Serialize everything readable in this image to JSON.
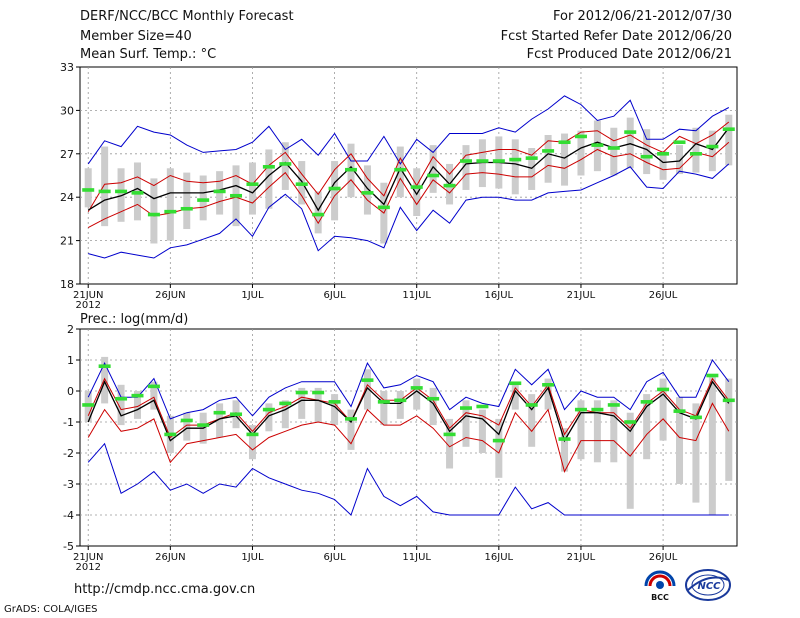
{
  "header": {
    "title": "DERF/NCC/BCC Monthly Forecast",
    "member_size": "Member Size=40",
    "variable": "Mean Surf. Temp.: °C",
    "period": "For 2012/06/21-2012/07/30",
    "fcst_started": "Fcst Started Refer Date 2012/06/20",
    "fcst_produced": "Fcst Produced Date 2012/06/21"
  },
  "footer": {
    "url": "http://cmdp.ncc.cma.gov.cn",
    "credit": "GrADS: COLA/IGES",
    "logo_bcc": "BCC",
    "logo_ncc": "NCC"
  },
  "colors": {
    "envelope": "#0000cc",
    "spread": "#cc0000",
    "mean": "#000000",
    "box": "#cccccc",
    "observed": "#33dd33",
    "grid": "#999999"
  },
  "chart_data": [
    {
      "type": "line",
      "title": "Mean Surf. Temp.: °C",
      "year_label": "2012",
      "ylim": [
        18,
        33
      ],
      "yticks": [
        18,
        21,
        24,
        27,
        30,
        33
      ],
      "xtick_labels": [
        "21JUN",
        "26JUN",
        "1JUL",
        "6JUL",
        "11JUL",
        "16JUL",
        "21JUL",
        "26JUL"
      ],
      "xtick_days": [
        1,
        6,
        11,
        16,
        21,
        26,
        31,
        36
      ],
      "grid": true,
      "series": [
        {
          "name": "ensemble max",
          "values": [
            26.3,
            27.9,
            27.5,
            28.9,
            28.5,
            28.3,
            27.6,
            27.1,
            27.2,
            27.3,
            27.8,
            28.9,
            27.3,
            28.0,
            26.9,
            28.4,
            26.5,
            26.5,
            28.2,
            26.3,
            28.0,
            27.1,
            28.4,
            28.4,
            28.4,
            28.8,
            28.5,
            29.4,
            30.1,
            31.0,
            30.4,
            29.3,
            29.6,
            30.7,
            28.0,
            28.0,
            28.7,
            28.6,
            29.6,
            30.2
          ]
        },
        {
          "name": "spread upper",
          "values": [
            23.0,
            24.9,
            25.0,
            25.4,
            24.8,
            25.5,
            25.1,
            25.0,
            25.1,
            25.5,
            24.9,
            26.2,
            27.1,
            25.6,
            24.2,
            25.9,
            27.0,
            25.3,
            24.1,
            26.7,
            24.8,
            26.8,
            25.6,
            26.9,
            27.1,
            27.3,
            27.3,
            26.9,
            27.9,
            27.8,
            28.5,
            28.6,
            27.9,
            28.3,
            27.6,
            27.1,
            28.2,
            27.7,
            28.3,
            29.2
          ]
        },
        {
          "name": "ensemble mean",
          "values": [
            23.1,
            23.8,
            24.1,
            24.6,
            23.9,
            24.3,
            24.3,
            24.3,
            24.5,
            24.8,
            24.3,
            25.5,
            26.4,
            25.1,
            23.1,
            25.0,
            26.1,
            24.6,
            23.5,
            26.0,
            24.2,
            26.1,
            24.9,
            26.3,
            26.4,
            26.4,
            26.3,
            26.0,
            27.0,
            26.7,
            27.4,
            27.8,
            27.4,
            27.7,
            27.3,
            26.4,
            26.5,
            27.7,
            27.3,
            28.8
          ]
        },
        {
          "name": "spread lower",
          "values": [
            21.9,
            22.5,
            23.0,
            23.5,
            22.7,
            22.9,
            23.2,
            23.3,
            23.7,
            24.0,
            23.6,
            24.7,
            25.7,
            24.1,
            22.2,
            24.1,
            25.2,
            23.8,
            22.9,
            25.3,
            23.5,
            25.2,
            24.3,
            25.6,
            25.7,
            25.6,
            25.4,
            25.4,
            26.2,
            26.0,
            26.6,
            27.3,
            26.8,
            27.0,
            26.4,
            25.9,
            26.0,
            27.1,
            26.8,
            27.8
          ]
        },
        {
          "name": "ensemble min",
          "values": [
            20.1,
            19.8,
            20.2,
            20.0,
            19.8,
            20.5,
            20.7,
            21.1,
            21.5,
            22.5,
            21.3,
            23.3,
            24.2,
            23.2,
            20.3,
            21.3,
            21.2,
            21.0,
            20.5,
            23.3,
            21.7,
            23.1,
            22.2,
            23.8,
            24.0,
            24.0,
            23.8,
            23.8,
            24.3,
            24.4,
            24.5,
            25.0,
            25.5,
            26.1,
            24.7,
            24.6,
            25.8,
            25.6,
            25.3,
            26.3
          ]
        }
      ],
      "boxes": [
        [
          23.3,
          26.0
        ],
        [
          22.0,
          27.5
        ],
        [
          22.3,
          26.0
        ],
        [
          22.4,
          26.4
        ],
        [
          20.8,
          25.3
        ],
        [
          21.0,
          26.0
        ],
        [
          21.8,
          25.7
        ],
        [
          22.4,
          25.5
        ],
        [
          22.8,
          25.8
        ],
        [
          22.0,
          26.2
        ],
        [
          22.8,
          26.4
        ],
        [
          23.2,
          27.3
        ],
        [
          24.5,
          27.8
        ],
        [
          23.5,
          26.5
        ],
        [
          21.5,
          24.4
        ],
        [
          22.4,
          26.5
        ],
        [
          24.0,
          27.7
        ],
        [
          22.8,
          26.2
        ],
        [
          20.8,
          25.0
        ],
        [
          24.0,
          27.5
        ],
        [
          22.7,
          26.0
        ],
        [
          24.3,
          27.6
        ],
        [
          23.5,
          26.3
        ],
        [
          24.5,
          27.6
        ],
        [
          24.7,
          28.0
        ],
        [
          24.6,
          28.2
        ],
        [
          24.2,
          28.0
        ],
        [
          24.5,
          27.4
        ],
        [
          25.0,
          28.3
        ],
        [
          24.8,
          28.4
        ],
        [
          25.5,
          28.6
        ],
        [
          25.8,
          29.3
        ],
        [
          25.5,
          28.8
        ],
        [
          26.0,
          29.5
        ],
        [
          25.6,
          28.7
        ],
        [
          25.2,
          27.2
        ],
        [
          25.6,
          27.6
        ],
        [
          25.7,
          28.8
        ],
        [
          25.8,
          28.6
        ],
        [
          26.2,
          29.7
        ]
      ],
      "observed": [
        24.5,
        24.4,
        24.4,
        24.3,
        22.8,
        23.0,
        23.2,
        23.8,
        24.4,
        24.1,
        24.9,
        26.1,
        26.3,
        24.9,
        22.8,
        24.6,
        25.9,
        24.3,
        23.3,
        25.9,
        24.7,
        25.5,
        24.8,
        26.5,
        26.5,
        26.5,
        26.6,
        26.7,
        27.2,
        27.8,
        28.2,
        27.6,
        27.4,
        28.5,
        26.8,
        27.0,
        27.8,
        27.0,
        27.5,
        28.7
      ]
    },
    {
      "type": "line",
      "title": "Prec.: log(mm/d)",
      "year_label": "2012",
      "ylim": [
        -5,
        2
      ],
      "yticks": [
        -5,
        -4,
        -3,
        -2,
        -1,
        0,
        1,
        2
      ],
      "xtick_labels": [
        "21JUN",
        "26JUN",
        "1JUL",
        "6JUL",
        "11JUL",
        "16JUL",
        "21JUL",
        "26JUL"
      ],
      "xtick_days": [
        1,
        6,
        11,
        16,
        21,
        26,
        31,
        36
      ],
      "grid": true,
      "series": [
        {
          "name": "ensemble max",
          "values": [
            -0.2,
            0.9,
            -0.2,
            -0.2,
            0.4,
            -0.9,
            -0.7,
            -0.6,
            -0.3,
            -0.2,
            -0.8,
            -0.2,
            0.1,
            0.3,
            0.3,
            0.3,
            -0.5,
            0.9,
            0.1,
            0.2,
            0.5,
            0.3,
            -0.6,
            -0.2,
            -0.4,
            -0.5,
            0.7,
            0.2,
            0.7,
            -0.6,
            0.0,
            -0.2,
            -0.2,
            -0.6,
            0.3,
            0.6,
            -0.2,
            -0.2,
            1.0,
            0.3
          ]
        },
        {
          "name": "spread upper",
          "values": [
            -0.8,
            0.4,
            -0.6,
            -0.5,
            -0.2,
            -1.5,
            -1.1,
            -1.1,
            -0.9,
            -0.7,
            -1.3,
            -0.7,
            -0.5,
            -0.2,
            -0.3,
            -0.4,
            -1.0,
            0.2,
            -0.3,
            -0.3,
            0.1,
            -0.3,
            -1.2,
            -0.7,
            -0.8,
            -1.1,
            0.1,
            -0.5,
            0.2,
            -1.4,
            -0.6,
            -0.7,
            -0.7,
            -1.2,
            -0.4,
            0.0,
            -0.6,
            -0.8,
            0.4,
            -0.3
          ]
        },
        {
          "name": "ensemble mean",
          "values": [
            -1.0,
            0.3,
            -0.8,
            -0.6,
            -0.3,
            -1.6,
            -1.2,
            -1.2,
            -0.9,
            -0.8,
            -1.4,
            -0.8,
            -0.6,
            -0.3,
            -0.3,
            -0.5,
            -1.0,
            0.1,
            -0.4,
            -0.4,
            0.0,
            -0.4,
            -1.3,
            -0.8,
            -0.9,
            -1.4,
            0.0,
            -0.6,
            0.1,
            -1.6,
            -0.7,
            -0.7,
            -0.8,
            -1.3,
            -0.5,
            -0.1,
            -0.7,
            -0.9,
            0.3,
            -0.4
          ]
        },
        {
          "name": "spread lower",
          "values": [
            -1.5,
            -0.6,
            -1.3,
            -1.2,
            -0.9,
            -2.3,
            -1.7,
            -1.6,
            -1.5,
            -1.4,
            -1.9,
            -1.5,
            -1.3,
            -1.1,
            -1.0,
            -1.1,
            -1.7,
            -0.6,
            -1.1,
            -1.1,
            -0.8,
            -1.2,
            -1.8,
            -1.5,
            -1.6,
            -2.0,
            -0.7,
            -1.3,
            -0.6,
            -2.6,
            -1.6,
            -1.6,
            -1.6,
            -2.1,
            -1.4,
            -0.9,
            -1.5,
            -1.6,
            -0.4,
            -1.3
          ]
        },
        {
          "name": "ensemble min",
          "values": [
            -2.3,
            -1.7,
            -3.3,
            -3.0,
            -2.6,
            -3.2,
            -3.0,
            -3.3,
            -3.0,
            -3.1,
            -2.5,
            -2.8,
            -3.0,
            -3.2,
            -3.3,
            -3.5,
            -4.0,
            -2.5,
            -3.4,
            -3.7,
            -3.4,
            -3.9,
            -4.0,
            -4.0,
            -4.0,
            -4.0,
            -3.1,
            -3.8,
            -3.6,
            -4.0,
            -4.0,
            -4.0,
            -4.0,
            -4.0,
            -4.0,
            -4.0,
            -4.0,
            -4.0,
            -4.0,
            -4.0
          ]
        }
      ],
      "boxes": [
        [
          -1.0,
          0.0
        ],
        [
          -0.4,
          1.1
        ],
        [
          -1.1,
          0.2
        ],
        [
          -0.9,
          0.0
        ],
        [
          -0.6,
          0.3
        ],
        [
          -2.0,
          -0.8
        ],
        [
          -1.6,
          -0.7
        ],
        [
          -1.7,
          -0.7
        ],
        [
          -1.5,
          -0.4
        ],
        [
          -1.2,
          -0.3
        ],
        [
          -2.2,
          -1.1
        ],
        [
          -1.3,
          -0.4
        ],
        [
          -1.2,
          -0.3
        ],
        [
          -0.9,
          0.1
        ],
        [
          -1.0,
          0.1
        ],
        [
          -1.1,
          -0.1
        ],
        [
          -1.9,
          -0.6
        ],
        [
          -0.6,
          0.7
        ],
        [
          -1.1,
          0.0
        ],
        [
          -0.9,
          0.0
        ],
        [
          -0.6,
          0.4
        ],
        [
          -1.1,
          0.1
        ],
        [
          -2.5,
          -0.9
        ],
        [
          -1.8,
          -0.3
        ],
        [
          -2.0,
          -0.6
        ],
        [
          -2.8,
          -0.9
        ],
        [
          -0.6,
          0.3
        ],
        [
          -1.8,
          -0.1
        ],
        [
          -0.6,
          0.4
        ],
        [
          -2.6,
          -1.2
        ],
        [
          -2.2,
          -0.3
        ],
        [
          -2.3,
          -0.3
        ],
        [
          -2.3,
          -0.3
        ],
        [
          -3.8,
          -0.7
        ],
        [
          -2.2,
          -0.1
        ],
        [
          -1.6,
          0.4
        ],
        [
          -3.0,
          -0.2
        ],
        [
          -3.6,
          -0.4
        ],
        [
          -4.0,
          0.5
        ],
        [
          -2.9,
          0.4
        ]
      ],
      "observed": [
        -0.45,
        0.8,
        -0.25,
        -0.15,
        0.15,
        -1.4,
        -0.95,
        -1.1,
        -0.7,
        -0.75,
        -1.4,
        -0.6,
        -0.4,
        -0.05,
        -0.05,
        -0.35,
        -0.9,
        0.35,
        -0.35,
        -0.3,
        0.1,
        -0.25,
        -1.4,
        -0.55,
        -0.5,
        -1.6,
        0.25,
        -0.45,
        0.2,
        -1.55,
        -0.6,
        -0.6,
        -0.45,
        -1.0,
        -0.35,
        0.05,
        -0.65,
        -0.85,
        0.5,
        -0.3
      ]
    }
  ]
}
